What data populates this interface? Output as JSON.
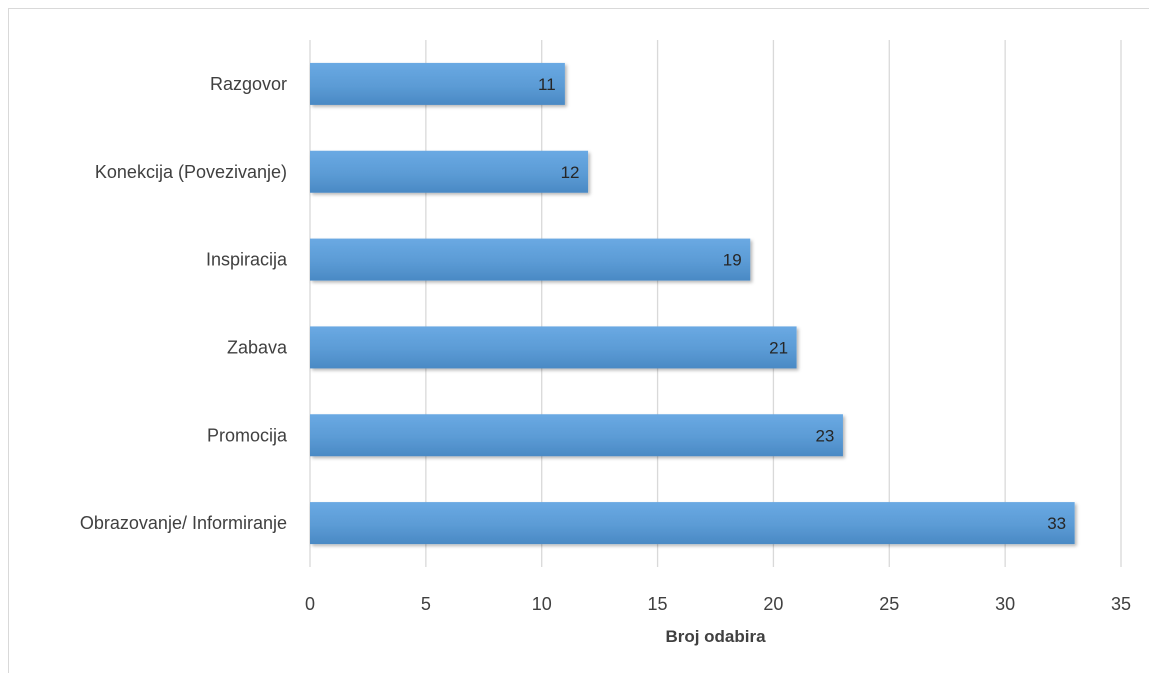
{
  "chart_data": {
    "type": "bar",
    "orientation": "horizontal",
    "categories": [
      "Razgovor",
      "Konekcija (Povezivanje)",
      "Inspiracija",
      "Zabava",
      "Promocija",
      "Obrazovanje/ Informiranje"
    ],
    "values": [
      11,
      12,
      19,
      21,
      23,
      33
    ],
    "data_labels": [
      "11",
      "12",
      "19",
      "21",
      "23",
      "33"
    ],
    "title": "",
    "xlabel": "Broj odabira",
    "ylabel": "",
    "xlim": [
      0,
      35
    ],
    "x_ticks": [
      "0",
      "5",
      "10",
      "15",
      "20",
      "25",
      "30",
      "35"
    ],
    "grid": true,
    "legend": "none",
    "bar_color": "#5b9bd5",
    "bar_color_light": "#6aa9e3",
    "bar_color_dark": "#4a89c4"
  }
}
